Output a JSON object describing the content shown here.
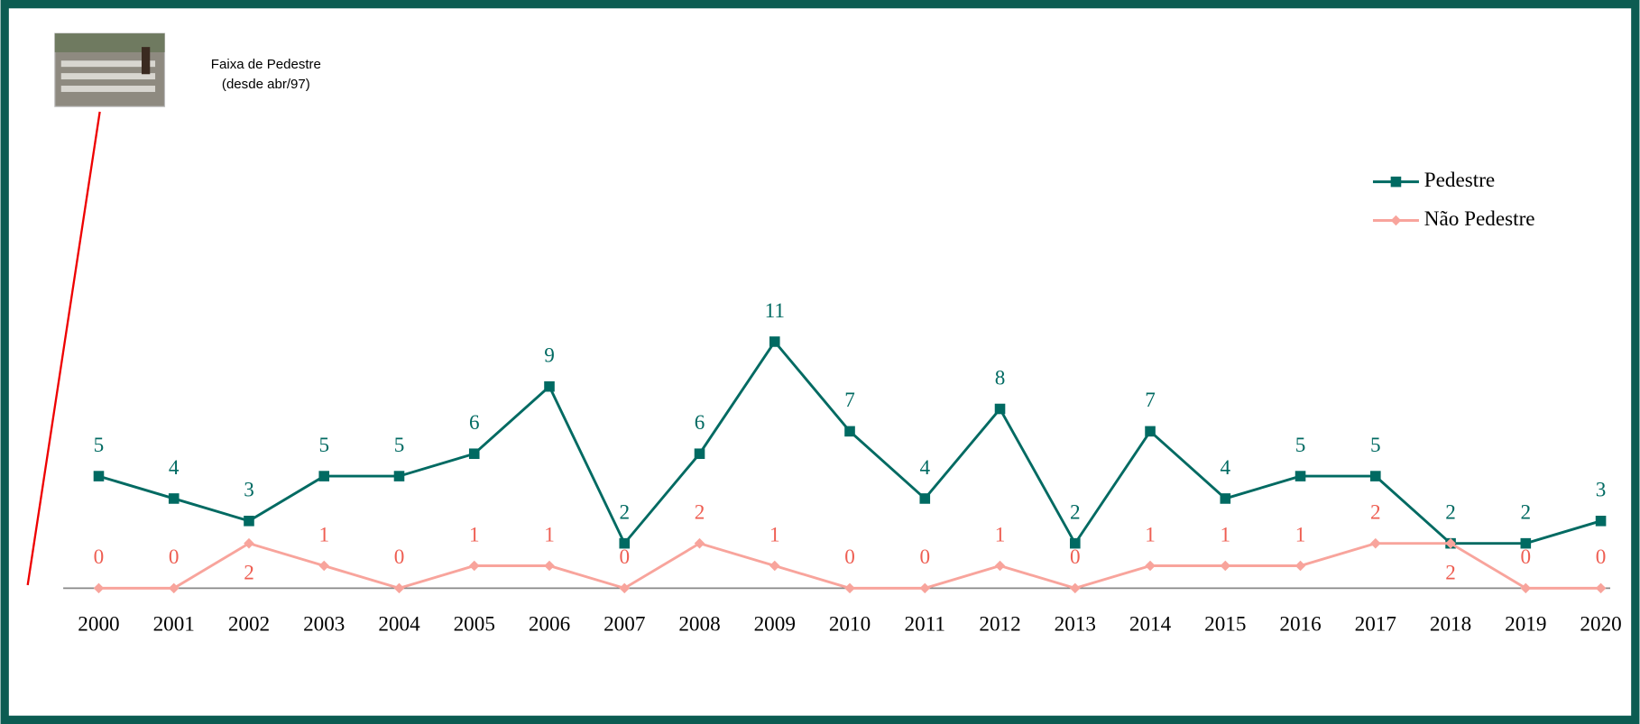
{
  "chart_data": {
    "type": "line",
    "annotation": [
      "Faixa de Pedestre",
      "(desde abr/97)"
    ],
    "categories": [
      "2000",
      "2001",
      "2002",
      "2003",
      "2004",
      "2005",
      "2006",
      "2007",
      "2008",
      "2009",
      "2010",
      "2011",
      "2012",
      "2013",
      "2014",
      "2015",
      "2016",
      "2017",
      "2018",
      "2019",
      "2020"
    ],
    "series": [
      {
        "name": "Pedestre",
        "color": "#006a62",
        "marker": "square",
        "values": [
          5,
          4,
          3,
          5,
          5,
          6,
          9,
          2,
          6,
          11,
          7,
          4,
          8,
          2,
          7,
          4,
          5,
          5,
          2,
          2,
          3
        ]
      },
      {
        "name": "Não Pedestre",
        "color": "#f8a49c",
        "marker": "diamond",
        "values": [
          0,
          0,
          2,
          1,
          0,
          1,
          1,
          0,
          2,
          1,
          0,
          0,
          1,
          0,
          1,
          1,
          1,
          2,
          2,
          0,
          0
        ]
      }
    ],
    "ylim": [
      0,
      20
    ],
    "legend": "top-right"
  }
}
